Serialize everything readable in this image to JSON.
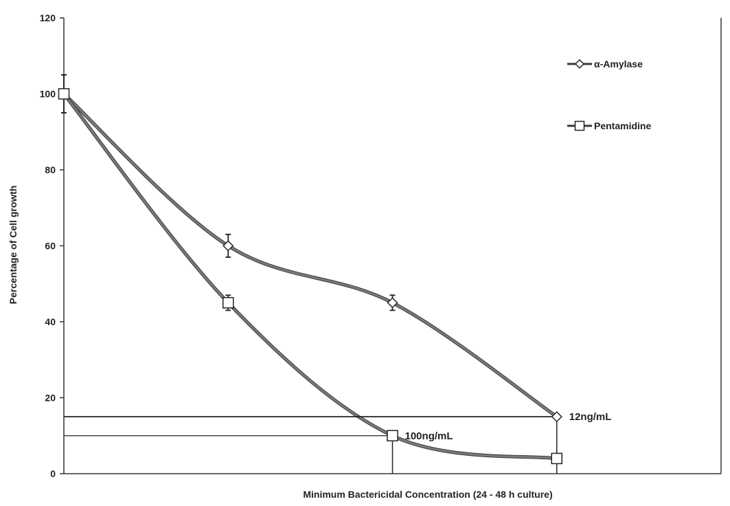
{
  "chart_data": {
    "type": "line",
    "title": "",
    "xlabel": "Minimum Bactericidal Concentration (24 - 48 h culture)",
    "ylabel": "Percentage of Cell growth",
    "ylim": [
      0,
      120
    ],
    "yticks": [
      "0",
      "20",
      "40",
      "60",
      "80",
      "100",
      "120"
    ],
    "x": [
      1,
      2,
      3,
      4
    ],
    "xlim": [
      1,
      5
    ],
    "series": [
      {
        "name": "α-Amylase",
        "marker": "diamond",
        "color": "#7a7a7a",
        "values": [
          100,
          60,
          45,
          15
        ],
        "errors": [
          5,
          3,
          2,
          0
        ]
      },
      {
        "name": "Pentamidine",
        "marker": "square",
        "color": "#7a7a7a",
        "values": [
          100,
          45,
          10,
          4
        ],
        "errors": [
          5,
          2,
          0,
          0
        ]
      }
    ],
    "legend_position": "top-right",
    "grid": false,
    "annotations": [
      {
        "text": "12ng/mL",
        "x": 4,
        "y": 15
      },
      {
        "text": "100ng/mL",
        "x": 3,
        "y": 10
      }
    ]
  }
}
